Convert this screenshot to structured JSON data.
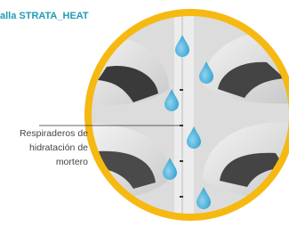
{
  "labels": {
    "top": "alla STRATA_HEAT",
    "side": [
      "Respiraderos de",
      "hidratación de",
      "mortero"
    ]
  }
}
